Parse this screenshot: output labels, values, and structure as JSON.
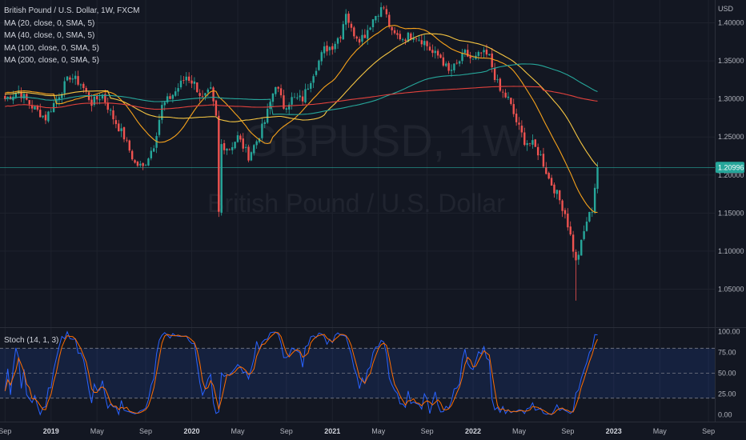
{
  "header": {
    "symbol_line": "British Pound / U.S. Dollar, 1W, FXCM",
    "indicators": [
      "MA (20, close, 0, SMA, 5)",
      "MA (40, close, 0, SMA, 5)",
      "MA (100, close, 0, SMA, 5)",
      "MA (200, close, 0, SMA, 5)"
    ]
  },
  "watermark": {
    "ticker": "GBPUSD, 1W",
    "description": "British Pound / U.S. Dollar"
  },
  "colors": {
    "background": "#131722",
    "grid": "#1e222d",
    "up": "#26a69a",
    "down": "#ef5350",
    "ma20": "#f7a21b",
    "ma40": "#f5c542",
    "ma100": "#26a69a",
    "ma200": "#e0413c",
    "stoch_k": "#2962ff",
    "stoch_d": "#ff6d00",
    "price_line": "#26a69a"
  },
  "chart_data": {
    "type": "candlestick",
    "price_axis_label": "USD",
    "price_ticks": [
      "1.40000",
      "1.35000",
      "1.30000",
      "1.25000",
      "1.20000",
      "1.15000",
      "1.10000",
      "1.05000"
    ],
    "price_tick_values": [
      1.4,
      1.35,
      1.3,
      1.25,
      1.2,
      1.15,
      1.1,
      1.05
    ],
    "price_range": [
      1.0,
      1.43
    ],
    "last_price": "1.20996",
    "last_value": 1.20996,
    "time_labels": [
      {
        "label": "Sep",
        "t": 0,
        "bold": false
      },
      {
        "label": "2019",
        "t": 17,
        "bold": true
      },
      {
        "label": "May",
        "t": 34,
        "bold": false
      },
      {
        "label": "Sep",
        "t": 52,
        "bold": false
      },
      {
        "label": "2020",
        "t": 69,
        "bold": true
      },
      {
        "label": "May",
        "t": 86,
        "bold": false
      },
      {
        "label": "Sep",
        "t": 104,
        "bold": false
      },
      {
        "label": "2021",
        "t": 121,
        "bold": true
      },
      {
        "label": "May",
        "t": 138,
        "bold": false
      },
      {
        "label": "Sep",
        "t": 156,
        "bold": false
      },
      {
        "label": "2022",
        "t": 173,
        "bold": true
      },
      {
        "label": "May",
        "t": 190,
        "bold": false
      },
      {
        "label": "Sep",
        "t": 208,
        "bold": false
      },
      {
        "label": "2023",
        "t": 225,
        "bold": true
      },
      {
        "label": "May",
        "t": 242,
        "bold": false
      },
      {
        "label": "Sep",
        "t": 260,
        "bold": false
      }
    ],
    "close_anchors": [
      [
        0,
        1.3
      ],
      [
        5,
        1.31
      ],
      [
        10,
        1.29
      ],
      [
        15,
        1.275
      ],
      [
        19,
        1.3
      ],
      [
        24,
        1.33
      ],
      [
        28,
        1.32
      ],
      [
        32,
        1.295
      ],
      [
        36,
        1.305
      ],
      [
        40,
        1.275
      ],
      [
        44,
        1.25
      ],
      [
        48,
        1.215
      ],
      [
        51,
        1.21
      ],
      [
        55,
        1.24
      ],
      [
        58,
        1.29
      ],
      [
        63,
        1.31
      ],
      [
        67,
        1.33
      ],
      [
        70,
        1.32
      ],
      [
        73,
        1.3
      ],
      [
        76,
        1.31
      ],
      [
        78,
        1.275
      ],
      [
        79,
        1.15
      ],
      [
        80,
        1.24
      ],
      [
        83,
        1.235
      ],
      [
        86,
        1.25
      ],
      [
        90,
        1.225
      ],
      [
        93,
        1.245
      ],
      [
        96,
        1.27
      ],
      [
        100,
        1.32
      ],
      [
        103,
        1.29
      ],
      [
        106,
        1.3
      ],
      [
        110,
        1.3
      ],
      [
        114,
        1.335
      ],
      [
        118,
        1.365
      ],
      [
        121,
        1.37
      ],
      [
        124,
        1.385
      ],
      [
        126,
        1.415
      ],
      [
        128,
        1.39
      ],
      [
        131,
        1.38
      ],
      [
        133,
        1.385
      ],
      [
        136,
        1.405
      ],
      [
        138,
        1.415
      ],
      [
        140,
        1.42
      ],
      [
        143,
        1.385
      ],
      [
        147,
        1.38
      ],
      [
        151,
        1.385
      ],
      [
        155,
        1.375
      ],
      [
        158,
        1.36
      ],
      [
        161,
        1.355
      ],
      [
        164,
        1.335
      ],
      [
        167,
        1.345
      ],
      [
        170,
        1.36
      ],
      [
        173,
        1.35
      ],
      [
        176,
        1.36
      ],
      [
        179,
        1.355
      ],
      [
        181,
        1.33
      ],
      [
        183,
        1.31
      ],
      [
        186,
        1.3
      ],
      [
        189,
        1.27
      ],
      [
        192,
        1.245
      ],
      [
        195,
        1.24
      ],
      [
        198,
        1.225
      ],
      [
        201,
        1.195
      ],
      [
        204,
        1.175
      ],
      [
        207,
        1.15
      ],
      [
        209,
        1.12
      ],
      [
        211,
        1.085
      ],
      [
        213,
        1.11
      ],
      [
        215,
        1.14
      ],
      [
        217,
        1.155
      ],
      [
        218,
        1.185
      ],
      [
        219,
        1.21
      ]
    ],
    "wick_extremes": [
      {
        "t": 79,
        "low": 1.145
      },
      {
        "t": 211,
        "low": 1.035
      }
    ],
    "bar_count": 220,
    "moving_averages": [
      {
        "name": "MA (20, close, 0, SMA, 5)",
        "period": 20
      },
      {
        "name": "MA (40, close, 0, SMA, 5)",
        "period": 40
      },
      {
        "name": "MA (100, close, 0, SMA, 5)",
        "period": 100
      },
      {
        "name": "MA (200, close, 0, SMA, 5)",
        "period": 200
      }
    ],
    "stochastic": {
      "label": "Stoch (14, 1, 3)",
      "ticks": [
        "100.00",
        "75.00",
        "50.00",
        "25.00",
        "0.00"
      ],
      "tick_values": [
        100,
        75,
        50,
        25,
        0
      ],
      "bands": [
        80,
        50,
        20
      ]
    }
  }
}
